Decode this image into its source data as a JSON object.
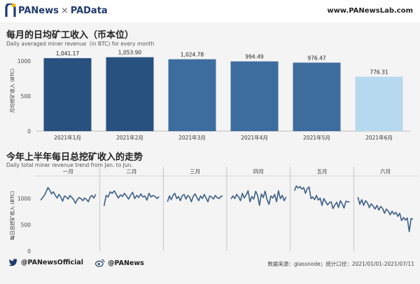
{
  "header": {
    "brand_left": "PANews",
    "brand_sep": "×",
    "brand_right": "PAData",
    "site": "www.PANewsLab.com"
  },
  "chart1": {
    "title": "每月的日均矿工收入（币本位）",
    "subtitle": "Daily averaged miner revenue（in BTC) for every month"
  },
  "chart2": {
    "title": "今年上半年每日总挖矿收入的走势",
    "subtitle": "Daily total miner revenue trend from Jan. to Jun."
  },
  "footer": {
    "twitter": "@PANewsOfficial",
    "weibo": "@PANews",
    "source": "数据来源：glassnode；统计口径：2021/01/01-2021/07/11"
  },
  "colors": {
    "bar_dark": "#28517f",
    "bar_mid": "#3d6d9e",
    "bar_light": "#b7d9ef",
    "line": "#3c5f86",
    "brand": "#1f3a6e"
  },
  "icons": [
    "pa-logo-icon",
    "twitter-icon",
    "weibo-icon"
  ],
  "chart_data": [
    {
      "type": "bar",
      "ylabel": "月均挖矿收入 (BTC)",
      "ylim": [
        0,
        1150
      ],
      "yticks": [
        0,
        500,
        1000
      ],
      "categories": [
        "2021年1月",
        "2021年2月",
        "2021年3月",
        "2021年4月",
        "2021年5月",
        "2021年6月"
      ],
      "values": [
        1041.17,
        1053.9,
        1024.78,
        994.49,
        976.47,
        776.31
      ],
      "value_labels": [
        "1,041.17",
        "1,053.90",
        "1,024.78",
        "994.49",
        "976.47",
        "776.31"
      ],
      "grid": false
    },
    {
      "type": "line",
      "ylabel": "每日总挖矿收入 (BTC)",
      "ylim": [
        0,
        1350
      ],
      "yticks": [
        0,
        500,
        1000
      ],
      "panels": [
        "一月",
        "二月",
        "三月",
        "四月",
        "五月",
        "六月"
      ],
      "series": [
        {
          "values": [
            970,
            1010,
            1060,
            1130,
            1210,
            1160,
            1090,
            1130,
            1060,
            1010,
            1080,
            1030,
            950,
            1050,
            1030,
            990,
            1060,
            1020,
            980,
            910,
            980,
            1020,
            1000,
            960,
            1010,
            980,
            940,
            1030,
            1060,
            1010,
            1080
          ]
        },
        {
          "values": [
            860,
            1060,
            1030,
            1130,
            1100,
            1150,
            1080,
            1010,
            1070,
            1040,
            1100,
            1050,
            990,
            1060,
            1120,
            1000,
            1060,
            1020,
            1090,
            1030,
            1050,
            970,
            1100,
            1030,
            1060,
            1040,
            1000,
            1040
          ]
        },
        {
          "values": [
            940,
            1050,
            980,
            1060,
            1100,
            1000,
            1040,
            960,
            1050,
            1080,
            990,
            1060,
            1030,
            940,
            1040,
            1090,
            1020,
            960,
            1050,
            1000,
            1080,
            1010,
            940,
            1050,
            1030,
            990,
            1060,
            1020,
            1000,
            1040,
            1050
          ]
        },
        {
          "values": [
            990,
            1050,
            1000,
            1080,
            1030,
            960,
            1100,
            1010,
            1070,
            1150,
            940,
            1040,
            990,
            1140,
            1060,
            870,
            1090,
            1020,
            1140,
            980,
            890,
            1050,
            1010,
            1080,
            940,
            1150,
            1000,
            1060,
            960,
            1030
          ]
        },
        {
          "values": [
            1150,
            1240,
            1200,
            1230,
            1180,
            1210,
            1100,
            1190,
            1220,
            1000,
            1030,
            980,
            1060,
            970,
            1010,
            870,
            1000,
            940,
            880,
            920,
            940,
            810,
            880,
            930,
            830,
            960,
            900,
            820,
            950,
            940,
            930
          ]
        },
        {
          "values": [
            1030,
            890,
            980,
            870,
            960,
            920,
            830,
            900,
            860,
            800,
            870,
            780,
            850,
            810,
            720,
            800,
            760,
            690,
            760,
            700,
            740,
            660,
            720,
            580,
            640,
            590,
            630,
            370,
            620,
            610
          ]
        }
      ],
      "grid": false
    }
  ]
}
